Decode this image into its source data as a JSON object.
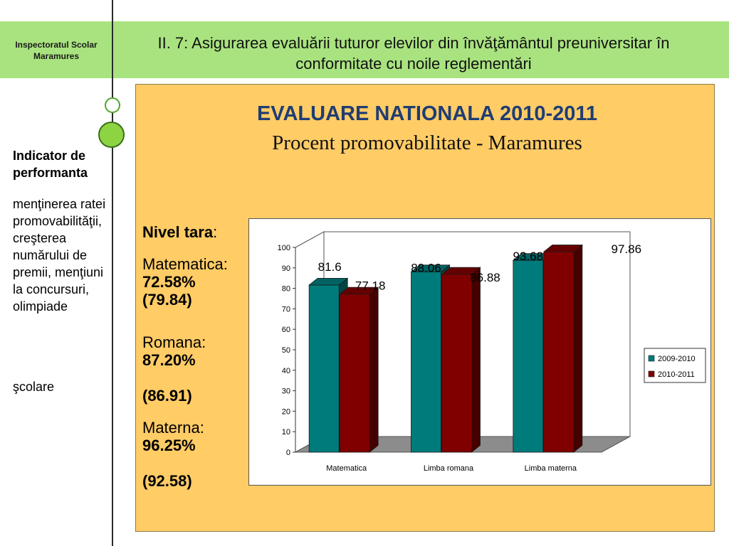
{
  "header": {
    "org_name": "Inspectoratul Scolar Maramures",
    "slide_title": "II. 7: Asigurarea evaluării tuturor elevilor din învăţământul preuniversitar în conformitate cu noile reglementări"
  },
  "sidebar": {
    "heading": "Indicator de performanta",
    "text": "menţinerea ratei promovabilităţii, creşterea numărului de premii, menţiuni la concursuri, olimpiade",
    "text_2": "şcolare"
  },
  "panel": {
    "title": "EVALUARE NATIONALA 2010-2011",
    "subtitle": "Procent promovabilitate - Maramures"
  },
  "national": {
    "label": "Nivel tara",
    "matematica_label": "Matematica:",
    "matematica_value": "72.58% (79.84)",
    "romana_label": "Romana:",
    "romana_value": "87.20%",
    "romana_prev": "(86.91)",
    "materna_label": "Materna:",
    "materna_value": "96.25%",
    "materna_prev": "(92.58)"
  },
  "colors": {
    "series_2009": "#007b7b",
    "series_2010": "#800000",
    "panel_bg": "#ffcc66",
    "header_bg": "#a9e37f"
  },
  "chart_data": {
    "type": "bar",
    "categories": [
      "Matematica",
      "Limba romana",
      "Limba materna"
    ],
    "series": [
      {
        "name": "2009-2010",
        "values": [
          81.6,
          88.06,
          93.68
        ],
        "labels": [
          "81.6",
          "88.06",
          "93.68"
        ]
      },
      {
        "name": "2010-2011",
        "values": [
          77.18,
          86.88,
          97.86
        ],
        "labels": [
          "77.18",
          "86.88",
          "97.86"
        ]
      }
    ],
    "ylim": [
      0,
      100
    ],
    "yticks": [
      0,
      10,
      20,
      30,
      40,
      50,
      60,
      70,
      80,
      90,
      100
    ],
    "xlabel": "",
    "ylabel": "",
    "legend": "right",
    "grid": false,
    "style": "3d-columns"
  }
}
